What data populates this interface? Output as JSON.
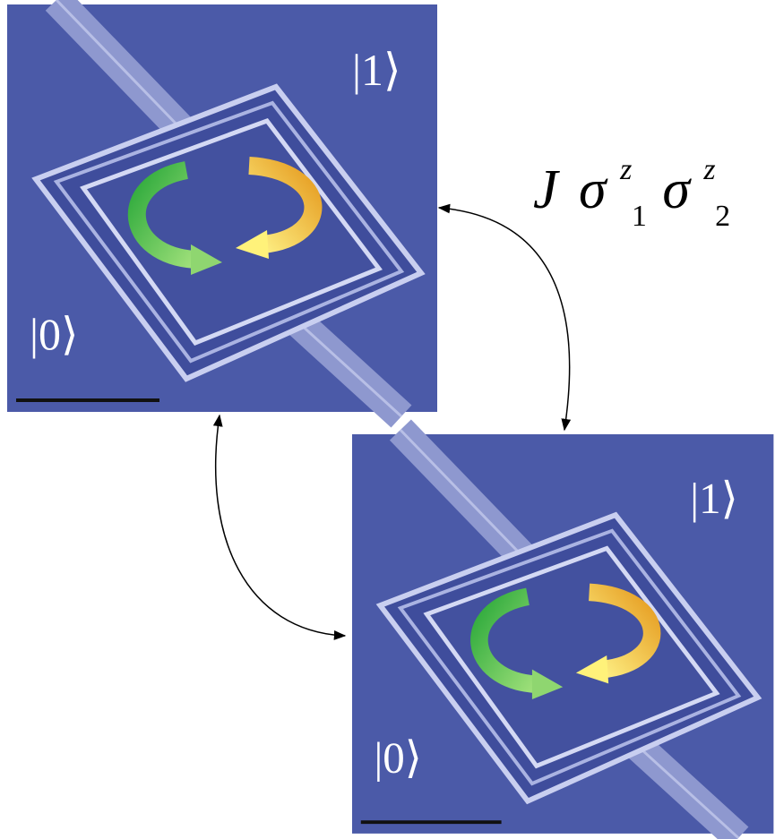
{
  "panels": [
    {
      "state_top": "|1⟩",
      "state_bottom": "|0⟩"
    },
    {
      "state_top": "|1⟩",
      "state_bottom": "|0⟩"
    }
  ],
  "coupling": {
    "symbol": "J",
    "operators": [
      {
        "base": "σ",
        "sup": "z",
        "sub": "1"
      },
      {
        "base": "σ",
        "sup": "z",
        "sub": "2"
      }
    ]
  }
}
